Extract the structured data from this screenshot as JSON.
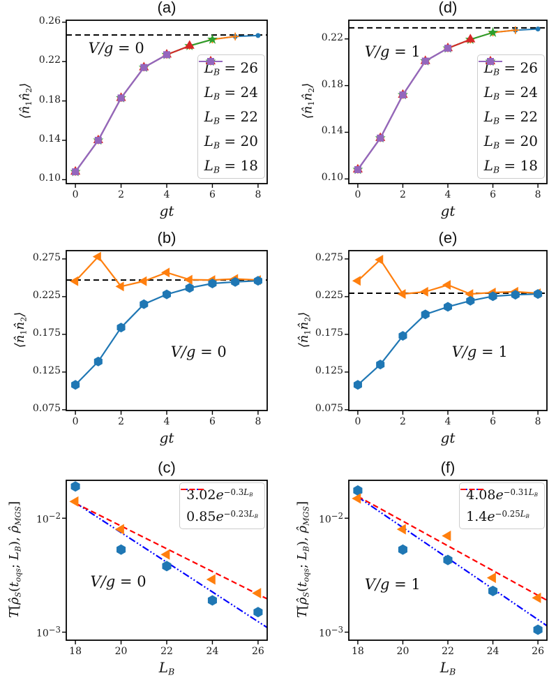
{
  "figure": {
    "background": "#ffffff"
  },
  "palette": {
    "blue": "#1f77b4",
    "orange": "#ff7f0e",
    "green": "#2ca02c",
    "red": "#d62728",
    "purple": "#9467bd",
    "fit_blue": "#0000ff",
    "fit_red": "#ff0000",
    "dashed_line": "#000000"
  },
  "chart_data": [
    {
      "id": "a",
      "row": 0,
      "col": 0,
      "type": "line",
      "title": "(a)",
      "xlabel": "gt",
      "ylabel": "⟨n̂_{1}n̂_{2}⟩",
      "annotation": {
        "text": "V/g = 0",
        "fx": 0.11,
        "fy": 0.12
      },
      "xlim": [
        -0.4,
        8.4
      ],
      "ylim": [
        0.096,
        0.262
      ],
      "yscale": "linear",
      "xticks": [
        {
          "v": 0,
          "l": "0"
        },
        {
          "v": 2,
          "l": "2"
        },
        {
          "v": 4,
          "l": "4"
        },
        {
          "v": 6,
          "l": "6"
        },
        {
          "v": 8,
          "l": "8"
        }
      ],
      "yticks": [
        {
          "v": 0.1,
          "l": "0.10"
        },
        {
          "v": 0.14,
          "l": "0.14"
        },
        {
          "v": 0.18,
          "l": "0.18"
        },
        {
          "v": 0.22,
          "l": "0.22"
        },
        {
          "v": 0.26,
          "l": "0.26"
        }
      ],
      "hline": 0.247,
      "series": [
        {
          "label": "L_{B} = 26",
          "color": "blue",
          "marker": "circle",
          "ms": 7,
          "lw": 2,
          "x": [
            0,
            1,
            2,
            3,
            4,
            5,
            6,
            7,
            8
          ],
          "y": [
            0.108,
            0.14,
            0.183,
            0.214,
            0.227,
            0.236,
            0.2425,
            0.2455,
            0.2465
          ]
        },
        {
          "label": "L_{B} = 24",
          "color": "orange",
          "marker": "plus",
          "ms": 11,
          "lw": 2,
          "x": [
            0,
            1,
            2,
            3,
            4,
            5,
            6,
            7
          ],
          "y": [
            0.108,
            0.14,
            0.183,
            0.214,
            0.227,
            0.236,
            0.2425,
            0.2455
          ]
        },
        {
          "label": "L_{B} = 22",
          "color": "green",
          "marker": "star",
          "ms": 12,
          "lw": 2,
          "x": [
            0,
            1,
            2,
            3,
            4,
            5,
            6
          ],
          "y": [
            0.108,
            0.14,
            0.183,
            0.214,
            0.227,
            0.236,
            0.2425
          ]
        },
        {
          "label": "L_{B} = 20",
          "color": "red",
          "marker": "triangle-up",
          "ms": 12,
          "lw": 2,
          "x": [
            0,
            1,
            2,
            3,
            4,
            5
          ],
          "y": [
            0.108,
            0.14,
            0.183,
            0.214,
            0.227,
            0.236
          ]
        },
        {
          "label": "L_{B} = 18",
          "color": "purple",
          "marker": "square",
          "ms": 10,
          "lw": 2.3,
          "x": [
            0,
            1,
            2,
            3,
            4
          ],
          "y": [
            0.108,
            0.14,
            0.183,
            0.214,
            0.227
          ]
        }
      ],
      "legend": {
        "source": "series",
        "position": "bottom-right"
      }
    },
    {
      "id": "d",
      "row": 0,
      "col": 1,
      "type": "line",
      "title": "(d)",
      "xlabel": "gt",
      "ylabel": "⟨n̂_{1}n̂_{2}⟩",
      "annotation": {
        "text": "V/g = 1",
        "fx": 0.08,
        "fy": 0.14
      },
      "xlim": [
        -0.4,
        8.4
      ],
      "ylim": [
        0.096,
        0.236
      ],
      "yscale": "linear",
      "xticks": [
        {
          "v": 0,
          "l": "0"
        },
        {
          "v": 2,
          "l": "2"
        },
        {
          "v": 4,
          "l": "4"
        },
        {
          "v": 6,
          "l": "6"
        },
        {
          "v": 8,
          "l": "8"
        }
      ],
      "yticks": [
        {
          "v": 0.1,
          "l": "0.10"
        },
        {
          "v": 0.14,
          "l": "0.14"
        },
        {
          "v": 0.18,
          "l": "0.18"
        },
        {
          "v": 0.22,
          "l": "0.22"
        }
      ],
      "hline": 0.2295,
      "series": [
        {
          "label": "L_{B} = 26",
          "color": "blue",
          "marker": "circle",
          "ms": 7,
          "lw": 2,
          "x": [
            0,
            1,
            2,
            3,
            4,
            5,
            6,
            7,
            8
          ],
          "y": [
            0.108,
            0.135,
            0.172,
            0.201,
            0.212,
            0.2195,
            0.2255,
            0.2275,
            0.2285
          ]
        },
        {
          "label": "L_{B} = 24",
          "color": "orange",
          "marker": "plus",
          "ms": 11,
          "lw": 2,
          "x": [
            0,
            1,
            2,
            3,
            4,
            5,
            6,
            7
          ],
          "y": [
            0.108,
            0.135,
            0.172,
            0.201,
            0.212,
            0.2195,
            0.2255,
            0.2275
          ]
        },
        {
          "label": "L_{B} = 22",
          "color": "green",
          "marker": "star",
          "ms": 12,
          "lw": 2,
          "x": [
            0,
            1,
            2,
            3,
            4,
            5,
            6
          ],
          "y": [
            0.108,
            0.135,
            0.172,
            0.201,
            0.212,
            0.2195,
            0.2255
          ]
        },
        {
          "label": "L_{B} = 20",
          "color": "red",
          "marker": "triangle-up",
          "ms": 12,
          "lw": 2,
          "x": [
            0,
            1,
            2,
            3,
            4,
            5
          ],
          "y": [
            0.108,
            0.135,
            0.172,
            0.201,
            0.212,
            0.2195
          ]
        },
        {
          "label": "L_{B} = 18",
          "color": "purple",
          "marker": "square",
          "ms": 10,
          "lw": 2.3,
          "x": [
            0,
            1,
            2,
            3,
            4
          ],
          "y": [
            0.108,
            0.135,
            0.172,
            0.201,
            0.212
          ]
        }
      ],
      "legend": {
        "source": "series",
        "position": "bottom-right"
      }
    },
    {
      "id": "b",
      "row": 1,
      "col": 0,
      "type": "line",
      "title": "(b)",
      "xlabel": "gt",
      "ylabel": "⟨n̂_{1}n̂_{2}⟩",
      "annotation": {
        "text": "V/g = 0",
        "fx": 0.52,
        "fy": 0.58
      },
      "xlim": [
        -0.4,
        8.4
      ],
      "ylim": [
        0.074,
        0.286
      ],
      "yscale": "linear",
      "xticks": [
        {
          "v": 0,
          "l": "0"
        },
        {
          "v": 2,
          "l": "2"
        },
        {
          "v": 4,
          "l": "4"
        },
        {
          "v": 6,
          "l": "6"
        },
        {
          "v": 8,
          "l": "8"
        }
      ],
      "yticks": [
        {
          "v": 0.075,
          "l": "0.075"
        },
        {
          "v": 0.125,
          "l": "0.125"
        },
        {
          "v": 0.175,
          "l": "0.175"
        },
        {
          "v": 0.225,
          "l": "0.225"
        },
        {
          "v": 0.275,
          "l": "0.275"
        }
      ],
      "hline": 0.247,
      "series": [
        {
          "label": "",
          "color": "orange",
          "marker": "triangle-left",
          "ms": 13,
          "lw": 2.2,
          "x": [
            0,
            1,
            2,
            3,
            4,
            5,
            6,
            7,
            8
          ],
          "y": [
            0.2455,
            0.278,
            0.2385,
            0.2455,
            0.257,
            0.2475,
            0.247,
            0.2485,
            0.247
          ]
        },
        {
          "label": "",
          "color": "blue",
          "marker": "hexagon",
          "ms": 12,
          "lw": 2.2,
          "x": [
            0,
            1,
            2,
            3,
            4,
            5,
            6,
            7,
            8
          ],
          "y": [
            0.108,
            0.139,
            0.184,
            0.215,
            0.228,
            0.2365,
            0.2425,
            0.2445,
            0.246
          ]
        }
      ],
      "legend": null
    },
    {
      "id": "e",
      "row": 1,
      "col": 1,
      "type": "line",
      "title": "(e)",
      "xlabel": "gt",
      "ylabel": "⟨n̂_{1}n̂_{2}⟩",
      "annotation": {
        "text": "V/g = 1",
        "fx": 0.52,
        "fy": 0.58
      },
      "xlim": [
        -0.4,
        8.4
      ],
      "ylim": [
        0.074,
        0.286
      ],
      "yscale": "linear",
      "xticks": [
        {
          "v": 0,
          "l": "0"
        },
        {
          "v": 2,
          "l": "2"
        },
        {
          "v": 4,
          "l": "4"
        },
        {
          "v": 6,
          "l": "6"
        },
        {
          "v": 8,
          "l": "8"
        }
      ],
      "yticks": [
        {
          "v": 0.075,
          "l": "0.075"
        },
        {
          "v": 0.125,
          "l": "0.125"
        },
        {
          "v": 0.175,
          "l": "0.175"
        },
        {
          "v": 0.225,
          "l": "0.225"
        },
        {
          "v": 0.275,
          "l": "0.275"
        }
      ],
      "hline": 0.2295,
      "series": [
        {
          "label": "",
          "color": "orange",
          "marker": "triangle-left",
          "ms": 13,
          "lw": 2.2,
          "x": [
            0,
            1,
            2,
            3,
            4,
            5,
            6,
            7,
            8
          ],
          "y": [
            0.246,
            0.274,
            0.2285,
            0.2315,
            0.2405,
            0.2285,
            0.2305,
            0.2315,
            0.2295
          ]
        },
        {
          "label": "",
          "color": "blue",
          "marker": "hexagon",
          "ms": 12,
          "lw": 2.2,
          "x": [
            0,
            1,
            2,
            3,
            4,
            5,
            6,
            7,
            8
          ],
          "y": [
            0.108,
            0.135,
            0.173,
            0.2015,
            0.2115,
            0.2195,
            0.2255,
            0.2275,
            0.2285
          ]
        }
      ],
      "legend": null
    },
    {
      "id": "c",
      "row": 2,
      "col": 0,
      "type": "scatter",
      "title": "(c)",
      "xlabel": "L_{B}",
      "ylabel": "T[ρ̂_{S}(t_{oqs}; L_{B}), ρ̂_{MGS}]",
      "annotation": {
        "text": "V/g = 0",
        "fx": 0.12,
        "fy": 0.58
      },
      "xlim": [
        17.6,
        26.4
      ],
      "ylim": [
        0.00085,
        0.0215
      ],
      "yscale": "log",
      "xticks": [
        {
          "v": 18,
          "l": "18"
        },
        {
          "v": 20,
          "l": "20"
        },
        {
          "v": 22,
          "l": "22"
        },
        {
          "v": 24,
          "l": "24"
        },
        {
          "v": 26,
          "l": "26"
        }
      ],
      "yticks": [
        {
          "v": 0.01,
          "l": "10^{−2}"
        },
        {
          "v": 0.001,
          "l": "10^{−3}"
        }
      ],
      "series": [
        {
          "label": "",
          "color": "blue",
          "marker": "hexagon",
          "ms": 13,
          "x": [
            18,
            20,
            22,
            24,
            26
          ],
          "y": [
            0.019,
            0.0053,
            0.0038,
            0.0019,
            0.0015
          ]
        },
        {
          "label": "",
          "color": "orange",
          "marker": "triangle-left",
          "ms": 14,
          "x": [
            18,
            20,
            22,
            24,
            26
          ],
          "y": [
            0.014,
            0.008,
            0.0048,
            0.0029,
            0.0022
          ]
        }
      ],
      "fits": [
        {
          "label": "3.02e^{−0.3L_{B}}",
          "color": "fit_blue",
          "dash": "dashdotdot",
          "a": 3.02,
          "b": -0.3,
          "x0": 18,
          "x1": 26.4
        },
        {
          "label": "0.85e^{−0.23L_{B}}",
          "color": "fit_red",
          "dash": "dashed",
          "a": 0.85,
          "b": -0.23,
          "x0": 18,
          "x1": 26.4
        }
      ],
      "legend": {
        "source": "fits",
        "position": "top-right"
      }
    },
    {
      "id": "f",
      "row": 2,
      "col": 1,
      "type": "scatter",
      "title": "(f)",
      "xlabel": "L_{B}",
      "ylabel": "T[ρ̂_{S}(t_{oqs}; L_{B}), ρ̂_{MGS}]",
      "annotation": {
        "text": "V/g = 1",
        "fx": 0.08,
        "fy": 0.6
      },
      "xlim": [
        17.6,
        26.4
      ],
      "ylim": [
        0.00085,
        0.0215
      ],
      "yscale": "log",
      "xticks": [
        {
          "v": 18,
          "l": "18"
        },
        {
          "v": 20,
          "l": "20"
        },
        {
          "v": 22,
          "l": "22"
        },
        {
          "v": 24,
          "l": "24"
        },
        {
          "v": 26,
          "l": "26"
        }
      ],
      "yticks": [
        {
          "v": 0.01,
          "l": "10^{−2}"
        },
        {
          "v": 0.001,
          "l": "10^{−3}"
        }
      ],
      "series": [
        {
          "label": "",
          "color": "blue",
          "marker": "hexagon",
          "ms": 13,
          "x": [
            18,
            20,
            22,
            24,
            26
          ],
          "y": [
            0.0175,
            0.0053,
            0.0043,
            0.0023,
            0.00105
          ]
        },
        {
          "label": "",
          "color": "orange",
          "marker": "triangle-left",
          "ms": 14,
          "x": [
            18,
            20,
            22,
            24,
            26
          ],
          "y": [
            0.0149,
            0.008,
            0.007,
            0.003,
            0.002
          ]
        }
      ],
      "fits": [
        {
          "label": "4.08e^{−0.31L_{B}}",
          "color": "fit_blue",
          "dash": "dashdotdot",
          "a": 4.08,
          "b": -0.31,
          "x0": 18,
          "x1": 26.4
        },
        {
          "label": "1.4e^{−0.25L_{B}}",
          "color": "fit_red",
          "dash": "dashed",
          "a": 1.4,
          "b": -0.25,
          "x0": 18,
          "x1": 26.4
        }
      ],
      "legend": {
        "source": "fits",
        "position": "top-right"
      }
    }
  ]
}
